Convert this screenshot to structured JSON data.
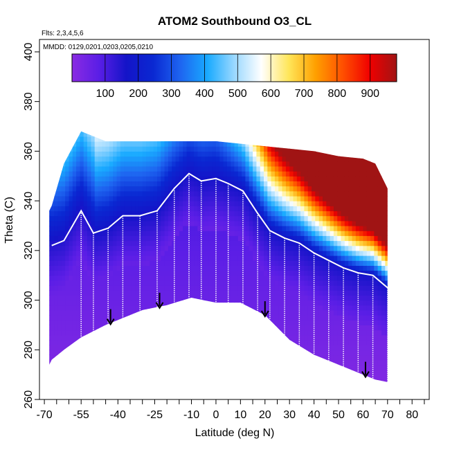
{
  "chart_data": {
    "type": "heatmap",
    "title": "ATOM2 Southbound O3_CL",
    "annotations": [
      "Flts: 2,3,4,5,6",
      "MMDD: 0129,0201,0203,0205,0210"
    ],
    "xlabel": "Latitude (deg N)",
    "ylabel": "Theta (C)",
    "xlim": [
      -72,
      87
    ],
    "ylim": [
      260,
      405
    ],
    "x_ticks": [
      -70,
      -55,
      -40,
      -25,
      -10,
      0,
      10,
      20,
      30,
      40,
      50,
      60,
      70,
      80
    ],
    "x_tick_labels": [
      "-70",
      "-55",
      "-40",
      "-25",
      "-10",
      "0",
      "10",
      "20",
      "30",
      "40",
      "50",
      "60",
      "70",
      "80"
    ],
    "x_minor_ticks": [
      -65,
      -60,
      -50,
      -45,
      -35,
      -30,
      -20,
      -15,
      -5,
      5,
      15,
      25,
      35,
      45,
      55,
      65,
      75,
      85
    ],
    "y_ticks": [
      260,
      280,
      300,
      320,
      340,
      360,
      380,
      400
    ],
    "y_tick_labels": [
      "260",
      "280",
      "300",
      "320",
      "340",
      "360",
      "380",
      "400"
    ],
    "colorbar": {
      "min": 0,
      "max": 980,
      "ticks": [
        100,
        200,
        300,
        400,
        500,
        600,
        700,
        800,
        900
      ],
      "tick_labels": [
        "100",
        "200",
        "300",
        "400",
        "500",
        "600",
        "700",
        "800",
        "900"
      ],
      "colors": [
        "#8a2be2",
        "#5a1ee6",
        "#1414c8",
        "#0a28d2",
        "#1e64f0",
        "#19aaff",
        "#9ad8ff",
        "#ffffff",
        "#ffe65a",
        "#ffa000",
        "#ff5000",
        "#f00000",
        "#a01414"
      ]
    },
    "coverage": {
      "lat": [
        -68,
        -67,
        -62,
        -55,
        -45,
        -40,
        -30,
        -20,
        -10,
        -5,
        0,
        10,
        20,
        30,
        40,
        50,
        60,
        65,
        70
      ],
      "theta_top": [
        336,
        338,
        355,
        368,
        364,
        364,
        364,
        364,
        364,
        364,
        364,
        363,
        362,
        361,
        360,
        358,
        357,
        355,
        345
      ],
      "theta_bottom": [
        274,
        276,
        280,
        285,
        290,
        292,
        296,
        298,
        301,
        300,
        299,
        299,
        294,
        284,
        278,
        274,
        270,
        268,
        267
      ]
    },
    "arrows_lat": [
      -43,
      -23,
      20,
      61
    ],
    "flight_profiles_lat": [
      -55,
      -50,
      -44,
      -38,
      -31,
      -24,
      -17,
      -11,
      -6,
      0,
      5,
      11,
      17,
      22,
      28,
      34,
      40,
      46,
      52,
      58,
      64,
      70
    ],
    "tropopause_trace": {
      "lat": [
        -67,
        -62,
        -55,
        -50,
        -44,
        -38,
        -31,
        -24,
        -17,
        -11,
        -6,
        0,
        5,
        11,
        17,
        22,
        28,
        34,
        40,
        46,
        52,
        58,
        64,
        70
      ],
      "theta": [
        322,
        324,
        336,
        327,
        329,
        334,
        334,
        336,
        345,
        351,
        348,
        349,
        347,
        344,
        335,
        328,
        325,
        323,
        319,
        316,
        313,
        311,
        310,
        305
      ]
    }
  }
}
